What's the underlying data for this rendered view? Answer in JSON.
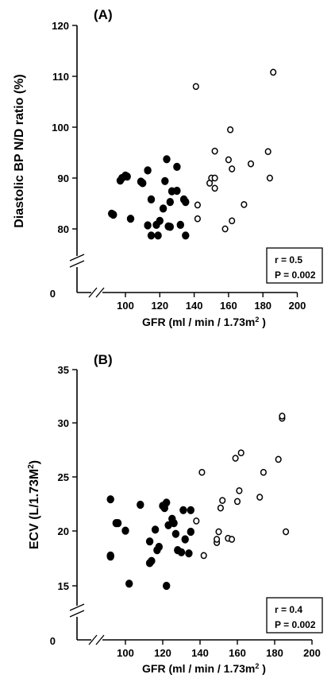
{
  "chart_data": [
    {
      "type": "scatter",
      "panel_label": "(A)",
      "xlabel_main": "GFR (ml / min / 1.73m",
      "xlabel_sup": "2",
      "xlabel_end": " )",
      "ylabel": "Diastolic BP N/D ratio (%)",
      "x_ticks": [
        100,
        120,
        140,
        160,
        180,
        200
      ],
      "y_ticks": [
        80,
        90,
        100,
        110,
        120
      ],
      "zero_label": "0",
      "xlim": [
        80,
        200
      ],
      "ylim": [
        75,
        120
      ],
      "axis_break": true,
      "stats": [
        "r = 0.5",
        "P = 0.002"
      ],
      "series": [
        {
          "marker": "filled",
          "points": [
            [
              92,
              83
            ],
            [
              93,
              82.8
            ],
            [
              97,
              89.5
            ],
            [
              98,
              90
            ],
            [
              100,
              90.5
            ],
            [
              101,
              90.3
            ],
            [
              103,
              82
            ],
            [
              109,
              89.3
            ],
            [
              110,
              89
            ],
            [
              113,
              91.5
            ],
            [
              113,
              80.7
            ],
            [
              115,
              78.7
            ],
            [
              115,
              85.8
            ],
            [
              118,
              80.8
            ],
            [
              119,
              78.7
            ],
            [
              120,
              81.6
            ],
            [
              122,
              84
            ],
            [
              123,
              89.4
            ],
            [
              124,
              93.7
            ],
            [
              125,
              80.5
            ],
            [
              126,
              80.4
            ],
            [
              126,
              85.3
            ],
            [
              127,
              87.4
            ],
            [
              130,
              87.5
            ],
            [
              130,
              92.2
            ],
            [
              132,
              80.8
            ],
            [
              134,
              85.8
            ],
            [
              135,
              85.3
            ],
            [
              135,
              78.7
            ]
          ]
        },
        {
          "marker": "open",
          "points": [
            [
              141,
              108
            ],
            [
              142,
              84.7
            ],
            [
              142,
              82
            ],
            [
              149,
              89
            ],
            [
              150,
              90
            ],
            [
              152,
              88
            ],
            [
              152,
              90
            ],
            [
              152,
              95.3
            ],
            [
              158,
              80
            ],
            [
              160,
              93.6
            ],
            [
              161,
              99.5
            ],
            [
              162,
              91.8
            ],
            [
              162,
              81.6
            ],
            [
              169,
              84.8
            ],
            [
              173,
              92.8
            ],
            [
              183,
              95.2
            ],
            [
              184,
              90
            ],
            [
              186,
              110.8
            ]
          ]
        }
      ]
    },
    {
      "type": "scatter",
      "panel_label": "(B)",
      "xlabel_main": "GFR (ml / min / 1.73m",
      "xlabel_sup": "2",
      "xlabel_end": " )",
      "ylabel_main": "ECV (L/1.73M",
      "ylabel_sup": "2",
      "ylabel_end": ")",
      "x_ticks": [
        100,
        120,
        140,
        160,
        180,
        200
      ],
      "y_ticks": [
        15,
        20,
        25,
        30,
        35
      ],
      "zero_label": "0",
      "xlim": [
        80,
        200
      ],
      "ylim": [
        13.5,
        35
      ],
      "axis_break": true,
      "stats": [
        "r = 0.4",
        "P = 0.002"
      ],
      "series": [
        {
          "marker": "filled",
          "points": [
            [
              92,
              23
            ],
            [
              92,
              17.7
            ],
            [
              92,
              17.8
            ],
            [
              95,
              20.8
            ],
            [
              96,
              20.8
            ],
            [
              100,
              20.1
            ],
            [
              102,
              15.2
            ],
            [
              108,
              22.5
            ],
            [
              113,
              19.1
            ],
            [
              113,
              17.1
            ],
            [
              114,
              17.3
            ],
            [
              116,
              20.2
            ],
            [
              117,
              18.3
            ],
            [
              118,
              18.6
            ],
            [
              120,
              22.4
            ],
            [
              121,
              22.2
            ],
            [
              122,
              15
            ],
            [
              122,
              22.7
            ],
            [
              123,
              20.6
            ],
            [
              125,
              21.2
            ],
            [
              126,
              20.8
            ],
            [
              127,
              19.8
            ],
            [
              128,
              18.3
            ],
            [
              130,
              18.1
            ],
            [
              131,
              22
            ],
            [
              132,
              19.3
            ],
            [
              134,
              18
            ],
            [
              135,
              22
            ],
            [
              135,
              20
            ]
          ]
        },
        {
          "marker": "open",
          "points": [
            [
              138,
              21
            ],
            [
              141,
              25.5
            ],
            [
              142,
              17.8
            ],
            [
              149,
              19
            ],
            [
              149,
              19.3
            ],
            [
              150,
              20
            ],
            [
              151,
              22.2
            ],
            [
              152,
              22.9
            ],
            [
              155,
              19.4
            ],
            [
              157,
              19.3
            ],
            [
              159,
              26.8
            ],
            [
              160,
              22.8
            ],
            [
              161,
              23.8
            ],
            [
              162,
              27.3
            ],
            [
              172,
              23.2
            ],
            [
              174,
              25.5
            ],
            [
              182,
              26.7
            ],
            [
              184,
              30.5
            ],
            [
              184,
              30.7
            ],
            [
              186,
              20
            ]
          ]
        }
      ]
    }
  ]
}
